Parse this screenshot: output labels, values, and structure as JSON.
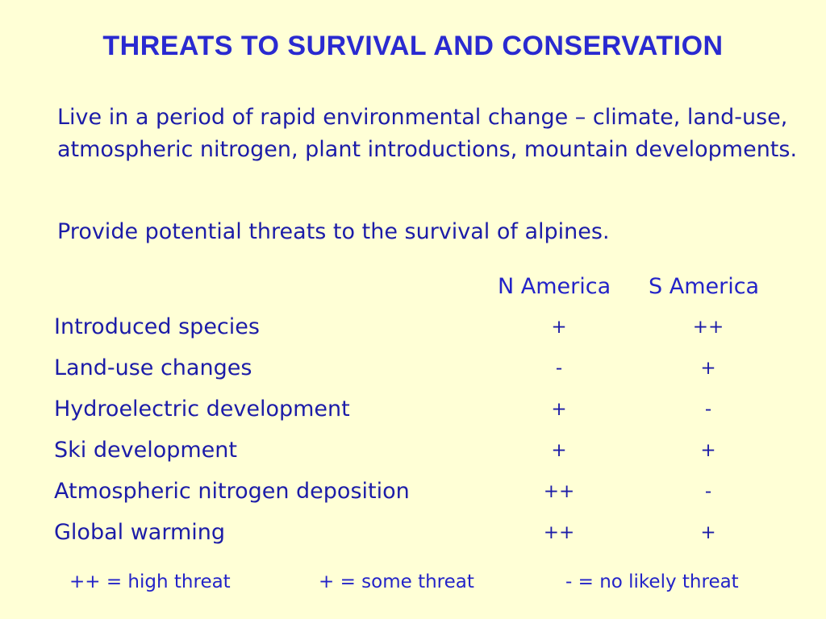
{
  "slide": {
    "title": "THREATS TO SURVIVAL AND CONSERVATION",
    "paragraphs": [
      "Live in a period of rapid environmental change – climate, land-use, atmospheric nitrogen, plant introductions, mountain developments.",
      "Provide potential threats to the survival of alpines."
    ],
    "table": {
      "columns": [
        "N America",
        "S America"
      ],
      "rows": [
        {
          "label": "Introduced species",
          "n_america": "+",
          "s_america": "++"
        },
        {
          "label": "Land-use changes",
          "n_america": "-",
          "s_america": "+"
        },
        {
          "label": "Hydroelectric development",
          "n_america": "+",
          "s_america": "-"
        },
        {
          "label": "Ski development",
          "n_america": "+",
          "s_america": "+"
        },
        {
          "label": "Atmospheric nitrogen deposition",
          "n_america": "++",
          "s_america": "-"
        },
        {
          "label": "Global warming",
          "n_america": "++",
          "s_america": "+"
        }
      ]
    },
    "legend": [
      "++ = high threat",
      "+ = some threat",
      "- = no likely threat"
    ],
    "colors": {
      "background": "#ffffd6",
      "title": "#2a2ad0",
      "text": "#1c1ca8"
    }
  }
}
